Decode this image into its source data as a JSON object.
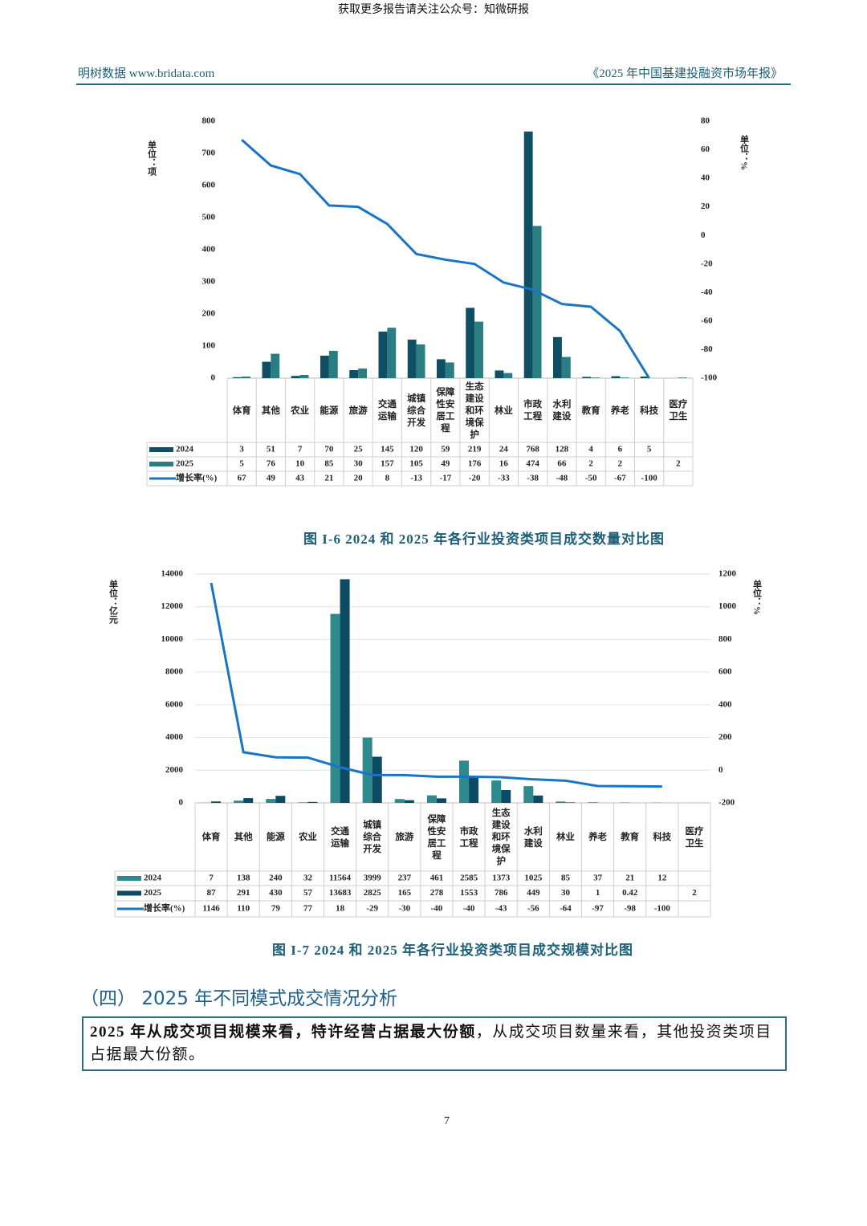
{
  "watermark": "获取更多报告请关注公众号：知微研报",
  "header": {
    "left": "明树数据 www.bridata.com",
    "right": "《2025 年中国基建投融资市场年报》"
  },
  "chart_data": [
    {
      "type": "bar",
      "title": "图 I-6 2024 和 2025 年各行业投资类项目成交数量对比图",
      "y_label": "单位：项",
      "y2_label": "单位：%",
      "categories": [
        "体育",
        "其他",
        "农业",
        "能源",
        "旅游",
        "交通运输",
        "城镇综合开发",
        "保障性安居工程",
        "生态建设和环境保护",
        "林业",
        "市政工程",
        "水利建设",
        "教育",
        "养老",
        "科技",
        "医疗卫生"
      ],
      "series": [
        {
          "name": "2024",
          "color": "#0e4f64",
          "values": [
            3,
            51,
            7,
            70,
            25,
            145,
            120,
            59,
            219,
            24,
            768,
            128,
            4,
            6,
            5,
            null
          ]
        },
        {
          "name": "2025",
          "color": "#2b7d84",
          "values": [
            5,
            76,
            10,
            85,
            30,
            157,
            105,
            49,
            176,
            16,
            474,
            66,
            2,
            2,
            null,
            2
          ]
        },
        {
          "name": "增长率(%)",
          "color": "#1a74c6",
          "axis": "y2",
          "values": [
            67,
            49,
            43,
            21,
            20,
            8,
            -13,
            -17,
            -20,
            -33,
            -38,
            -48,
            -50,
            -67,
            -100,
            null
          ]
        }
      ],
      "ylim": [
        0,
        800
      ],
      "yticks": [
        0,
        100,
        200,
        300,
        400,
        500,
        600,
        700,
        800
      ],
      "y2lim": [
        -100,
        80
      ],
      "y2ticks": [
        -100,
        -80,
        -60,
        -40,
        -20,
        0,
        20,
        40,
        60,
        80
      ],
      "grid": false
    },
    {
      "type": "bar",
      "title": "图 I-7 2024 和 2025 年各行业投资类项目成交规模对比图",
      "y_label": "单位：亿元",
      "y2_label": "单位：%",
      "categories": [
        "体育",
        "其他",
        "能源",
        "农业",
        "交通运输",
        "城镇综合开发",
        "旅游",
        "保障性安居工程",
        "市政工程",
        "生态建设和环境保护",
        "水利建设",
        "林业",
        "养老",
        "教育",
        "科技",
        "医疗卫生"
      ],
      "series": [
        {
          "name": "2024",
          "color": "#2e8a8c",
          "values": [
            7,
            138,
            240,
            32,
            11564,
            3999,
            237,
            461,
            2585,
            1373,
            1025,
            85,
            37,
            21,
            12,
            null
          ]
        },
        {
          "name": "2025",
          "color": "#0d4b62",
          "values": [
            87,
            291,
            430,
            57,
            13683,
            2825,
            165,
            278,
            1553,
            786,
            449,
            30,
            1,
            0.42,
            null,
            2
          ]
        },
        {
          "name": "增长率(%)",
          "color": "#1a74c6",
          "axis": "y2",
          "values": [
            1146,
            110,
            79,
            77,
            18,
            -29,
            -30,
            -40,
            -40,
            -43,
            -56,
            -64,
            -97,
            -98,
            -100,
            null
          ]
        }
      ],
      "ylim": [
        0,
        14000
      ],
      "yticks": [
        0,
        2000,
        4000,
        6000,
        8000,
        10000,
        12000,
        14000
      ],
      "y2lim": [
        -200,
        1200
      ],
      "y2ticks": [
        -200,
        0,
        200,
        400,
        600,
        800,
        1000,
        1200
      ],
      "grid": true
    }
  ],
  "section": {
    "number": "（四）",
    "title": "2025 年不同模式成交情况分析"
  },
  "summary": {
    "bold": "2025 年从成交项目规模来看，特许经营占据最大份额",
    "text": "，从成交项目数量来看，其他投资类项目占据最大份额。"
  },
  "page_number": "7"
}
